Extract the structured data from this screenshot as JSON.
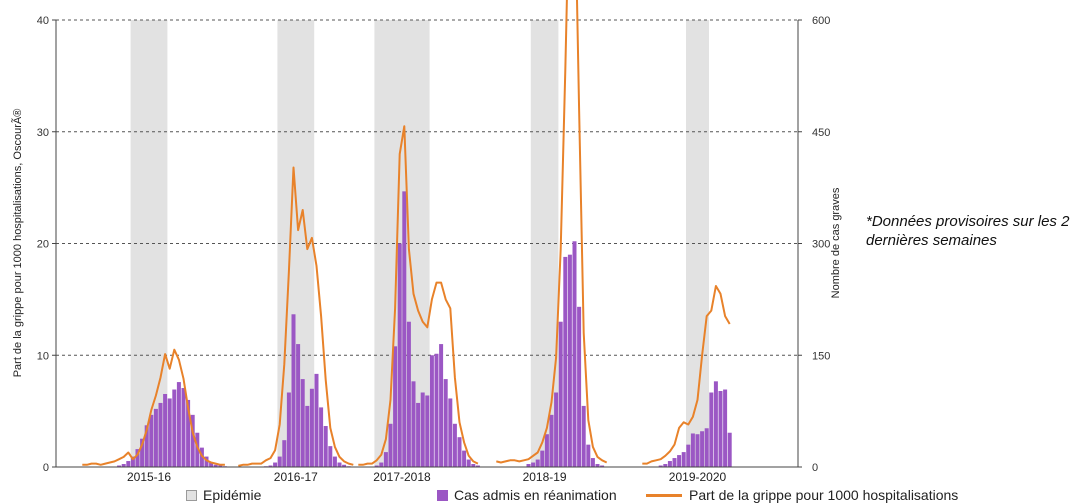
{
  "chart_data": {
    "type": "bar",
    "y_left_label": "Part de la grippe pour 1000 hospitalisations, OscourÃ®",
    "y_right_label": "Nombre de cas graves",
    "y_left_ticks": [
      "0",
      "10",
      "20",
      "30",
      "40"
    ],
    "y_right_ticks": [
      "0",
      "150",
      "300",
      "450",
      "600"
    ],
    "ylim_left": [
      0,
      40
    ],
    "ylim_right": [
      0,
      600
    ],
    "seasons": [
      {
        "label": "2015-16",
        "epidemic_weeks": [
          11,
          18
        ],
        "cases": [
          0,
          0,
          0,
          0,
          0,
          0,
          0,
          0,
          2,
          4,
          8,
          14,
          24,
          38,
          56,
          70,
          78,
          86,
          98,
          92,
          104,
          114,
          106,
          90,
          70,
          46,
          26,
          14,
          6,
          3,
          2,
          1
        ],
        "share": [
          0.2,
          0.2,
          0.3,
          0.3,
          0.2,
          0.3,
          0.4,
          0.5,
          0.7,
          0.9,
          1.3,
          0.7,
          1.1,
          2.0,
          3.3,
          5.1,
          6.4,
          8.0,
          10.1,
          8.8,
          10.5,
          9.6,
          7.9,
          5.3,
          3.1,
          1.8,
          1.0,
          0.6,
          0.4,
          0.3,
          0.2,
          0.2
        ]
      },
      {
        "label": "2016-17",
        "epidemic_weeks": [
          9,
          16
        ],
        "cases": [
          0,
          0,
          0,
          0,
          0,
          0,
          1,
          2,
          6,
          14,
          36,
          100,
          205,
          165,
          118,
          82,
          105,
          125,
          80,
          55,
          28,
          14,
          6,
          3,
          1,
          0
        ],
        "share": [
          0.1,
          0.2,
          0.2,
          0.3,
          0.3,
          0.3,
          0.6,
          0.8,
          1.5,
          3.8,
          9.2,
          17.5,
          26.8,
          21.2,
          23.0,
          19.5,
          20.5,
          18.0,
          13.5,
          7.8,
          3.5,
          1.8,
          0.9,
          0.5,
          0.3,
          0.2
        ]
      },
      {
        "label": "2017-2018",
        "epidemic_weeks": [
          4,
          15
        ],
        "cases": [
          0,
          0,
          0,
          0,
          2,
          6,
          20,
          58,
          162,
          300,
          370,
          195,
          115,
          86,
          100,
          96,
          150,
          152,
          165,
          118,
          92,
          58,
          40,
          22,
          10,
          4,
          2
        ],
        "share": [
          0.2,
          0.2,
          0.3,
          0.3,
          0.6,
          1.1,
          2.5,
          6.0,
          14.2,
          28.0,
          30.5,
          19.5,
          15.5,
          14.0,
          13.0,
          12.5,
          15.0,
          16.5,
          16.5,
          15.0,
          14.2,
          8.0,
          4.0,
          2.2,
          1.0,
          0.5,
          0.3
        ]
      },
      {
        "label": "2018-19",
        "epidemic_weeks": [
          8,
          13
        ],
        "cases": [
          0,
          0,
          0,
          0,
          0,
          0,
          0,
          4,
          6,
          10,
          22,
          44,
          70,
          100,
          195,
          282,
          285,
          303,
          215,
          82,
          30,
          12,
          4,
          2,
          0
        ],
        "share": [
          0.5,
          0.4,
          0.5,
          0.6,
          0.6,
          0.5,
          0.6,
          0.7,
          1.0,
          1.3,
          2.2,
          3.5,
          5.8,
          9.8,
          19.5,
          35.5,
          53.8,
          53.5,
          32.0,
          12.0,
          4.2,
          1.8,
          0.9,
          0.6,
          0.4
        ]
      },
      {
        "label": "2019-2020",
        "epidemic_weeks": [
          10,
          14
        ],
        "cases": [
          0,
          0,
          0,
          0,
          2,
          4,
          8,
          12,
          16,
          20,
          30,
          45,
          44,
          48,
          52,
          100,
          115,
          102,
          104,
          46
        ],
        "share": [
          0.3,
          0.3,
          0.5,
          0.6,
          0.7,
          1.0,
          1.4,
          2.0,
          3.5,
          4.0,
          3.8,
          4.5,
          6.0,
          10.0,
          13.5,
          14.0,
          16.2,
          15.5,
          13.5,
          12.8
        ]
      }
    ],
    "colors": {
      "bars": "#9B57C4",
      "line": "#E8822A",
      "epidemic": "#E2E2E2",
      "axis": "#444444"
    }
  },
  "note": {
    "text": "*Données provisoires sur les 2 dernières semaines"
  },
  "legend": {
    "epidemic": "Epidémie",
    "cases": "Cas admis en réanimation",
    "share": "Part de la grippe pour 1000 hospitalisations"
  }
}
